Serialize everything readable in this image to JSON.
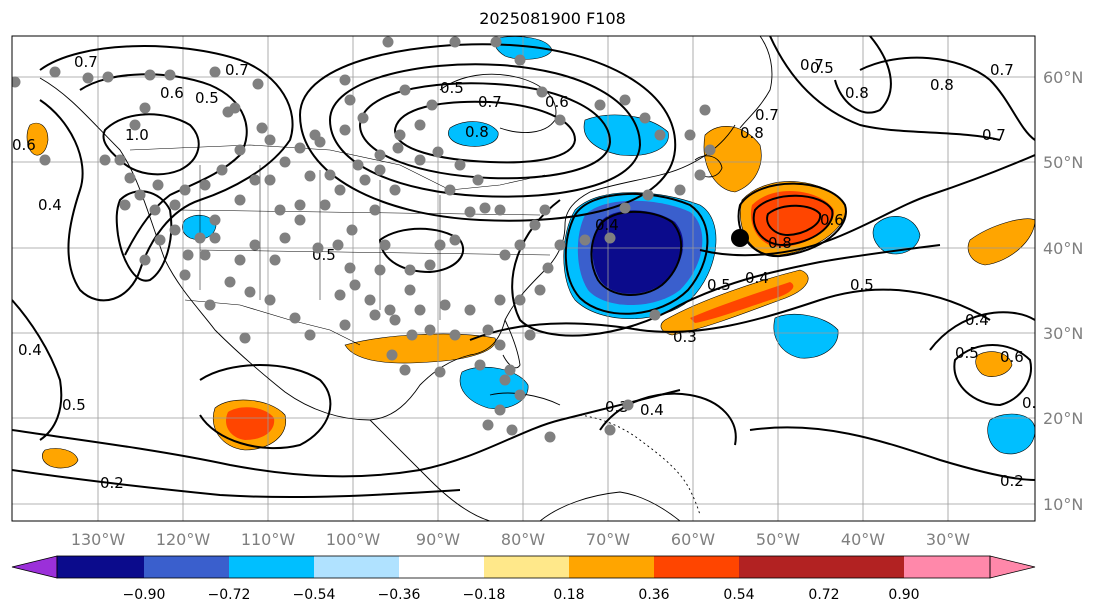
{
  "title": "2025081900 F108",
  "map": {
    "projection": "plate-carree",
    "lon_range": [
      -140,
      -20
    ],
    "lat_range": [
      8,
      65
    ],
    "gridlines": true,
    "lon_labels": [
      "130°W",
      "120°W",
      "110°W",
      "100°W",
      "90°W",
      "80°W",
      "70°W",
      "60°W",
      "50°W",
      "40°W",
      "30°W"
    ],
    "lat_labels": [
      "60°N",
      "50°N",
      "40°N",
      "30°N",
      "20°N",
      "10°N"
    ],
    "contour_color": "#000000",
    "contour_labels": [
      "0.7",
      "0.6",
      "0.5",
      "1.0",
      "0.7",
      "0.6",
      "0.4",
      "0.5",
      "0.7",
      "0.8",
      "0.5",
      "0.6",
      "0.8",
      "0.7",
      "0.5",
      "0.4",
      "0.4",
      "0.3",
      "0.5",
      "0.5",
      "0.4",
      "0.6",
      "0.7",
      "0.8",
      "0.7",
      "0.7",
      "0.8",
      "0.8",
      "0.5",
      "0.4",
      "0.2",
      "0.2",
      "0.5",
      "0.6",
      "0.3",
      "0.4",
      "0.7"
    ],
    "dot_color": "#808080",
    "center_marker_color": "#000000"
  },
  "colorbar": {
    "colors": [
      "#9b30d9",
      "#0b0b8c",
      "#3a5fcd",
      "#00bfff",
      "#b0e2ff",
      "#ffffff",
      "#ffe88a",
      "#ffa500",
      "#ff4500",
      "#b22222",
      "#ff88aa"
    ],
    "ticks": [
      "−0.90",
      "−0.72",
      "−0.54",
      "−0.36",
      "−0.18",
      "0.18",
      "0.36",
      "0.54",
      "0.72",
      "0.90"
    ],
    "extend": "both"
  }
}
